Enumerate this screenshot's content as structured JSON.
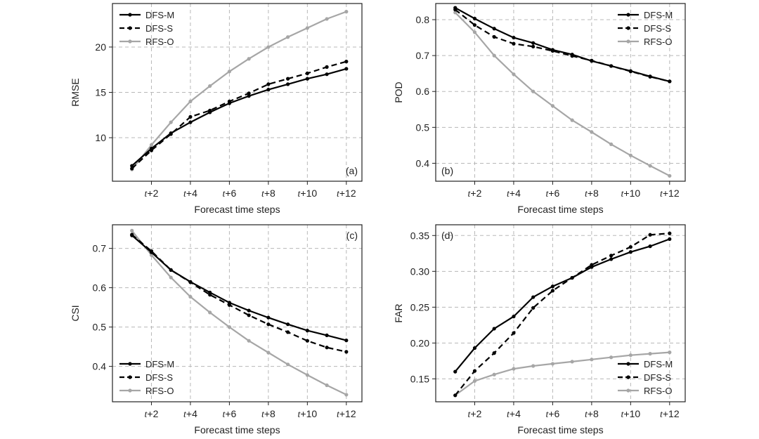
{
  "figure": {
    "x_tick_prefix": "t",
    "x_tick_operator": "+",
    "x_tick_display": [
      "2",
      "4",
      "6",
      "8",
      "10",
      "12"
    ]
  },
  "series_style": [
    {
      "name": "DFS-M",
      "color": "#000000",
      "dash": "solid"
    },
    {
      "name": "DFS-S",
      "color": "#000000",
      "dash": "dashed"
    },
    {
      "name": "RFS-O",
      "color": "#a6a6a6",
      "dash": "solid"
    }
  ],
  "chart_data": [
    {
      "id": "a",
      "type": "line",
      "panel_label": "(a)",
      "title": "",
      "xlabel": "Forecast time steps",
      "ylabel": "RMSE",
      "x": [
        1,
        2,
        3,
        4,
        5,
        6,
        7,
        8,
        9,
        10,
        11,
        12
      ],
      "xlim": [
        0,
        12.8
      ],
      "ylim": [
        5.2,
        24.8
      ],
      "yticks": [
        10,
        15,
        20
      ],
      "ytick_labels": [
        "10",
        "15",
        "20"
      ],
      "legend_position": "top-left",
      "tag_position": "bottom-right",
      "series": [
        {
          "name": "DFS-M",
          "values": [
            6.9,
            8.8,
            10.5,
            11.7,
            12.8,
            13.8,
            14.6,
            15.3,
            15.9,
            16.5,
            17.0,
            17.6
          ]
        },
        {
          "name": "DFS-S",
          "values": [
            6.6,
            8.6,
            10.4,
            12.3,
            13.0,
            14.0,
            14.9,
            15.9,
            16.5,
            17.1,
            17.8,
            18.4
          ]
        },
        {
          "name": "RFS-O",
          "values": [
            6.5,
            9.2,
            11.7,
            14.0,
            15.7,
            17.3,
            18.7,
            20.0,
            21.1,
            22.1,
            23.1,
            23.9
          ]
        }
      ]
    },
    {
      "id": "b",
      "type": "line",
      "panel_label": "(b)",
      "title": "",
      "xlabel": "Forecast time steps",
      "ylabel": "POD",
      "x": [
        1,
        2,
        3,
        4,
        5,
        6,
        7,
        8,
        9,
        10,
        11,
        12
      ],
      "xlim": [
        0,
        12.8
      ],
      "ylim": [
        0.35,
        0.845
      ],
      "yticks": [
        0.4,
        0.5,
        0.6,
        0.7,
        0.8
      ],
      "ytick_labels": [
        "0.4",
        "0.5",
        "0.6",
        "0.7",
        "0.8"
      ],
      "legend_position": "top-right",
      "tag_position": "bottom-left",
      "series": [
        {
          "name": "DFS-M",
          "values": [
            0.833,
            0.803,
            0.775,
            0.75,
            0.735,
            0.716,
            0.703,
            0.685,
            0.671,
            0.657,
            0.642,
            0.628
          ]
        },
        {
          "name": "DFS-S",
          "values": [
            0.828,
            0.785,
            0.752,
            0.733,
            0.725,
            0.713,
            0.699,
            0.686,
            0.671,
            0.656,
            0.641,
            0.628
          ]
        },
        {
          "name": "RFS-O",
          "values": [
            0.82,
            0.765,
            0.7,
            0.648,
            0.6,
            0.56,
            0.52,
            0.487,
            0.453,
            0.422,
            0.393,
            0.365
          ]
        }
      ]
    },
    {
      "id": "c",
      "type": "line",
      "panel_label": "(c)",
      "title": "",
      "xlabel": "Forecast time steps",
      "ylabel": "CSI",
      "x": [
        1,
        2,
        3,
        4,
        5,
        6,
        7,
        8,
        9,
        10,
        11,
        12
      ],
      "xlim": [
        0,
        12.8
      ],
      "ylim": [
        0.31,
        0.76
      ],
      "yticks": [
        0.4,
        0.5,
        0.6,
        0.7
      ],
      "ytick_labels": [
        "0.4",
        "0.5",
        "0.6",
        "0.7"
      ],
      "legend_position": "bottom-left",
      "tag_position": "top-right",
      "series": [
        {
          "name": "DFS-M",
          "values": [
            0.733,
            0.69,
            0.645,
            0.615,
            0.588,
            0.562,
            0.542,
            0.524,
            0.507,
            0.491,
            0.479,
            0.466
          ]
        },
        {
          "name": "DFS-S",
          "values": [
            0.735,
            0.693,
            0.645,
            0.614,
            0.582,
            0.556,
            0.53,
            0.507,
            0.487,
            0.465,
            0.448,
            0.437
          ]
        },
        {
          "name": "RFS-O",
          "values": [
            0.745,
            0.683,
            0.626,
            0.577,
            0.537,
            0.5,
            0.465,
            0.435,
            0.405,
            0.378,
            0.352,
            0.328
          ]
        }
      ]
    },
    {
      "id": "d",
      "type": "line",
      "panel_label": "(d)",
      "title": "",
      "xlabel": "Forecast time steps",
      "ylabel": "FAR",
      "x": [
        1,
        2,
        3,
        4,
        5,
        6,
        7,
        8,
        9,
        10,
        11,
        12
      ],
      "xlim": [
        0,
        12.8
      ],
      "ylim": [
        0.118,
        0.365
      ],
      "yticks": [
        0.15,
        0.2,
        0.25,
        0.3,
        0.35
      ],
      "ytick_labels": [
        "0.15",
        "0.20",
        "0.25",
        "0.30",
        "0.35"
      ],
      "legend_position": "bottom-right",
      "tag_position": "top-left",
      "series": [
        {
          "name": "DFS-M",
          "values": [
            0.16,
            0.193,
            0.22,
            0.237,
            0.264,
            0.279,
            0.291,
            0.306,
            0.317,
            0.327,
            0.335,
            0.345
          ]
        },
        {
          "name": "DFS-S",
          "values": [
            0.127,
            0.161,
            0.186,
            0.214,
            0.249,
            0.273,
            0.291,
            0.309,
            0.322,
            0.334,
            0.351,
            0.353
          ]
        },
        {
          "name": "RFS-O",
          "values": [
            0.127,
            0.147,
            0.156,
            0.164,
            0.168,
            0.171,
            0.174,
            0.177,
            0.18,
            0.183,
            0.185,
            0.187
          ]
        }
      ]
    }
  ]
}
